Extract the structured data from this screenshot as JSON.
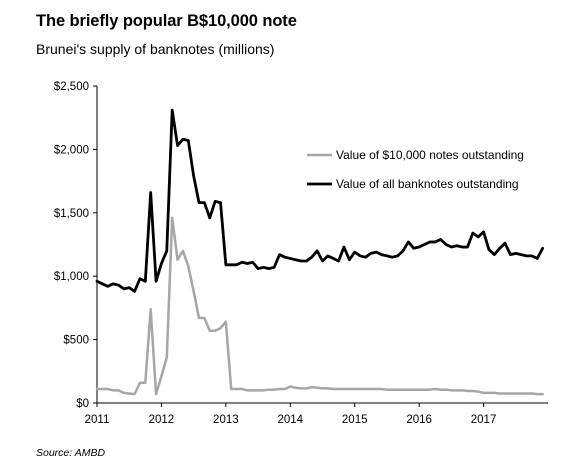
{
  "header": {
    "title": "The briefly popular B$10,000 note",
    "subtitle": "Brunei's supply of banknotes (millions)"
  },
  "footer": {
    "source": "Source: AMBD"
  },
  "chart_data": {
    "type": "line",
    "title": "The briefly popular B$10,000 note",
    "subtitle": "Brunei's supply of banknotes (millions)",
    "xlabel": "",
    "ylabel": "",
    "xlim": [
      2011,
      2018
    ],
    "ylim": [
      0,
      2500
    ],
    "x_ticks": [
      2011,
      2012,
      2013,
      2014,
      2015,
      2016,
      2017
    ],
    "x_tick_labels": [
      "2011",
      "2012",
      "2013",
      "2014",
      "2015",
      "2016",
      "2017"
    ],
    "y_ticks": [
      0,
      500,
      1000,
      1500,
      2000,
      2500
    ],
    "y_tick_labels": [
      "$0",
      "$500",
      "$1,000",
      "$1,500",
      "$2,000",
      "$2,500"
    ],
    "grid": false,
    "legend_position": "center-right",
    "x": [
      2011.0,
      2011.083,
      2011.167,
      2011.25,
      2011.333,
      2011.417,
      2011.5,
      2011.583,
      2011.667,
      2011.75,
      2011.833,
      2011.917,
      2012.0,
      2012.083,
      2012.167,
      2012.25,
      2012.333,
      2012.417,
      2012.5,
      2012.583,
      2012.667,
      2012.75,
      2012.833,
      2012.917,
      2013.0,
      2013.083,
      2013.167,
      2013.25,
      2013.333,
      2013.417,
      2013.5,
      2013.583,
      2013.667,
      2013.75,
      2013.833,
      2013.917,
      2014.0,
      2014.083,
      2014.167,
      2014.25,
      2014.333,
      2014.417,
      2014.5,
      2014.583,
      2014.667,
      2014.75,
      2014.833,
      2014.917,
      2015.0,
      2015.083,
      2015.167,
      2015.25,
      2015.333,
      2015.417,
      2015.5,
      2015.583,
      2015.667,
      2015.75,
      2015.833,
      2015.917,
      2016.0,
      2016.083,
      2016.167,
      2016.25,
      2016.333,
      2016.417,
      2016.5,
      2016.583,
      2016.667,
      2016.75,
      2016.833,
      2016.917,
      2017.0,
      2017.083,
      2017.167,
      2017.25,
      2017.333,
      2017.417,
      2017.5,
      2017.583,
      2017.667,
      2017.75,
      2017.833,
      2017.917
    ],
    "series": [
      {
        "name": "Value of $10,000 notes outstanding",
        "color": "#a6a6a6",
        "values": [
          110,
          110,
          110,
          100,
          100,
          80,
          75,
          70,
          160,
          160,
          740,
          70,
          210,
          360,
          1460,
          1130,
          1200,
          1080,
          880,
          670,
          670,
          570,
          570,
          590,
          640,
          110,
          110,
          110,
          100,
          100,
          100,
          100,
          105,
          105,
          110,
          110,
          130,
          120,
          115,
          115,
          125,
          120,
          115,
          115,
          110,
          110,
          110,
          110,
          110,
          110,
          110,
          110,
          110,
          110,
          105,
          105,
          105,
          105,
          105,
          105,
          105,
          105,
          105,
          110,
          105,
          105,
          100,
          100,
          100,
          95,
          95,
          90,
          80,
          80,
          80,
          75,
          75,
          75,
          75,
          75,
          75,
          75,
          70,
          70
        ]
      },
      {
        "name": "Value of all banknotes outstanding",
        "color": "#000000",
        "values": [
          960,
          940,
          920,
          940,
          930,
          900,
          910,
          880,
          980,
          960,
          1660,
          960,
          1100,
          1200,
          2310,
          2030,
          2080,
          2070,
          1790,
          1580,
          1580,
          1460,
          1590,
          1580,
          1090,
          1090,
          1090,
          1110,
          1100,
          1110,
          1060,
          1070,
          1060,
          1070,
          1170,
          1150,
          1140,
          1130,
          1120,
          1120,
          1150,
          1200,
          1120,
          1160,
          1140,
          1120,
          1230,
          1130,
          1190,
          1160,
          1150,
          1180,
          1190,
          1170,
          1160,
          1150,
          1160,
          1200,
          1270,
          1220,
          1230,
          1250,
          1270,
          1270,
          1290,
          1250,
          1230,
          1240,
          1230,
          1230,
          1340,
          1310,
          1350,
          1210,
          1170,
          1220,
          1260,
          1170,
          1180,
          1170,
          1160,
          1160,
          1140,
          1220
        ]
      }
    ]
  }
}
